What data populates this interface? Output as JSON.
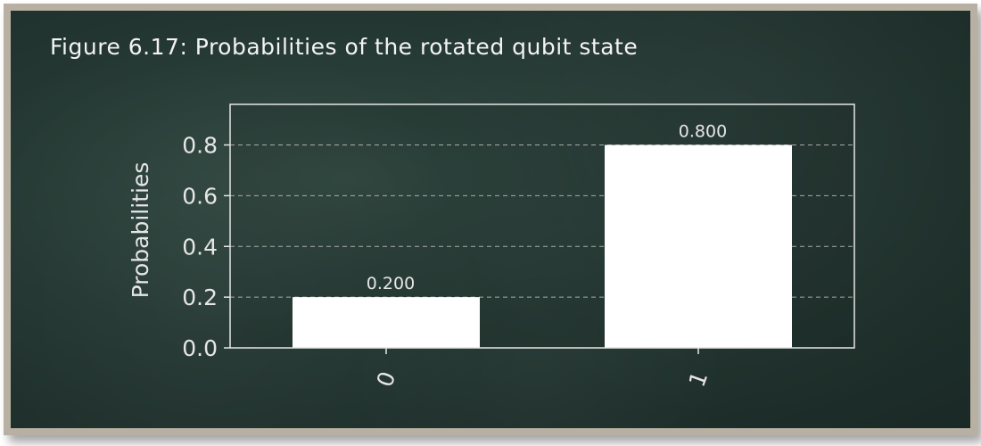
{
  "figure": {
    "caption": "Figure 6.17: Probabilities of the rotated qubit state"
  },
  "colors": {
    "background": "#233631",
    "bar": "#ffffff",
    "axis": "#e6e6e6",
    "grid": "#c8c8c8"
  },
  "chart_data": {
    "type": "bar",
    "categories": [
      "0",
      "1"
    ],
    "values": [
      0.2,
      0.8
    ],
    "data_labels": [
      "0.200",
      "0.800"
    ],
    "title": "",
    "xlabel": "",
    "ylabel": "Probabilities",
    "ylim": [
      0,
      0.96
    ],
    "yticks": [
      "0.0",
      "0.2",
      "0.4",
      "0.6",
      "0.8"
    ],
    "grid": "horizontal dashed",
    "legend": "none",
    "xtick_rotation": "vertical"
  }
}
